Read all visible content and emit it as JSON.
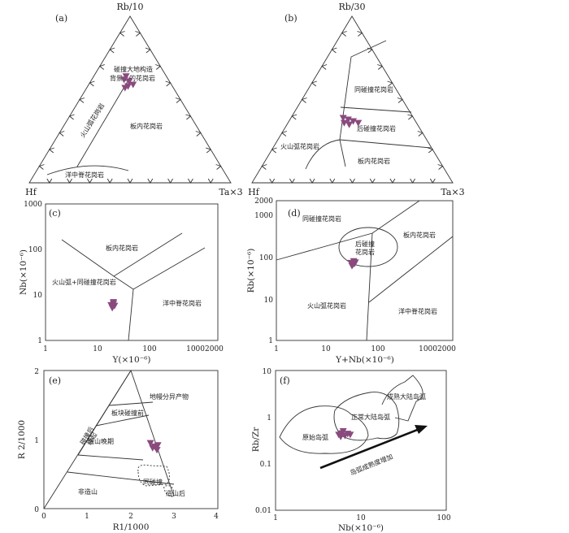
{
  "colors": {
    "marker": "#8a4a7e",
    "line": "#333333"
  },
  "panels": {
    "a": {
      "letter": "(a)",
      "apex_top": "Rb/10",
      "apex_left": "Hf",
      "apex_right": "Ta×3",
      "fields": {
        "syn_collision": "碰撞大地构造",
        "syn_collision2": "背景上的花岗岩",
        "volcanic_arc": "火山弧花岗岩",
        "within_plate": "板内花岗岩",
        "ocean_ridge": "洋中脊花岗岩"
      }
    },
    "b": {
      "letter": "(b)",
      "apex_top": "Rb/30",
      "apex_left": "Hf",
      "apex_right": "Ta×3",
      "fields": {
        "syn_collision": "同碰撞花岗岩",
        "post_collision": "后碰撞花岗岩",
        "volcanic_arc": "火山弧花岗岩",
        "within_plate": "板内花岗岩"
      }
    },
    "c": {
      "letter": "(c)",
      "ylabel": "Nb(×10⁻⁶)",
      "xlabel": "Y(×10⁻⁶)",
      "yticks": [
        "1000",
        "100",
        "10",
        "1"
      ],
      "xticks": [
        "1",
        "10",
        "100",
        "10002000"
      ],
      "fields": {
        "within_plate": "板内花岗岩",
        "arc_syn": "火山弧+同碰撞花岗岩",
        "ocean_ridge": "洋中脊花岗岩"
      }
    },
    "d": {
      "letter": "(d)",
      "ylabel": "Rb(×10⁻⁶)",
      "xlabel": "Y+Nb(×10⁻⁶)",
      "yticks": [
        "2000",
        "1000",
        "100",
        "10",
        "1"
      ],
      "xticks": [
        "1",
        "10",
        "100",
        "10002000"
      ],
      "fields": {
        "syn_collision": "同碰撞花岗岩",
        "post1": "后碰撞",
        "post2": "花岗岩",
        "within_plate": "板内花岗岩",
        "volcanic_arc": "火山弧花岗岩",
        "ocean_ridge": "洋中脊花岗岩"
      }
    },
    "e": {
      "letter": "(e)",
      "ylabel": "R 2/1000",
      "xlabel": "R1/1000",
      "yticks": [
        "2",
        "1",
        "0"
      ],
      "xticks": [
        "0",
        "1",
        "2",
        "3",
        "4"
      ],
      "fields": {
        "anorogenic": "地幔分异产物",
        "pre_plate": "板块碰撞前",
        "post_uplift1": "碰撞后",
        "post_uplift2": "隆起",
        "late_orogenic": "造山晚期",
        "non_orogenic": "非造山",
        "syn_collision": "同碰撞",
        "post_orogenic": "造山后"
      }
    },
    "f": {
      "letter": "(f)",
      "ylabel": "Rb/Zr",
      "xlabel": "Nb(×10⁻⁶)",
      "yticks": [
        "10",
        "1",
        "0.1",
        "0.01"
      ],
      "xticks": [
        "1",
        "10",
        "100"
      ],
      "fields": {
        "mature_arc": "成熟大陆岛弧",
        "normal_arc": "正常大陆岛弧",
        "primitive_arc": "原始岛弧",
        "arrow_label": "岛弧成熟度增加"
      }
    }
  },
  "chart_data": [
    {
      "panel": "a",
      "type": "scatter",
      "coordinates": "ternary (Rb/10, Hf, Ta×3)",
      "points": [
        [
          0.64,
          0.2,
          0.16
        ],
        [
          0.62,
          0.22,
          0.16
        ],
        [
          0.61,
          0.2,
          0.19
        ],
        [
          0.58,
          0.22,
          0.2
        ],
        [
          0.57,
          0.24,
          0.19
        ],
        [
          0.59,
          0.19,
          0.22
        ]
      ]
    },
    {
      "panel": "b",
      "type": "scatter",
      "coordinates": "ternary (Rb/30, Hf, Ta×3)",
      "points": [
        [
          0.39,
          0.35,
          0.26
        ],
        [
          0.38,
          0.33,
          0.29
        ],
        [
          0.36,
          0.36,
          0.28
        ],
        [
          0.35,
          0.34,
          0.31
        ],
        [
          0.36,
          0.29,
          0.35
        ],
        [
          0.37,
          0.31,
          0.32
        ]
      ]
    },
    {
      "panel": "c",
      "type": "scatter",
      "x_label": "Y(×10⁻⁶)",
      "y_label": "Nb(×10⁻⁶)",
      "log_x": true,
      "log_y": true,
      "xlim": [
        1,
        2000
      ],
      "ylim": [
        1,
        1000
      ],
      "points": [
        [
          18,
          6
        ],
        [
          20,
          6.5
        ],
        [
          19,
          5.2
        ],
        [
          21,
          5.8
        ],
        [
          20,
          7
        ]
      ]
    },
    {
      "panel": "d",
      "type": "scatter",
      "x_label": "Y+Nb(×10⁻⁶)",
      "y_label": "Rb(×10⁻⁶)",
      "log_x": true,
      "log_y": true,
      "xlim": [
        1,
        2000
      ],
      "ylim": [
        1,
        2000
      ],
      "points": [
        [
          25,
          68
        ],
        [
          27,
          62
        ],
        [
          28,
          75
        ],
        [
          30,
          70
        ],
        [
          26,
          58
        ],
        [
          29,
          65
        ]
      ]
    },
    {
      "panel": "e",
      "type": "scatter",
      "x_label": "R1/1000",
      "y_label": "R 2/1000",
      "xlim": [
        0,
        4
      ],
      "ylim": [
        0,
        2
      ],
      "points": [
        [
          2.45,
          0.95
        ],
        [
          2.55,
          0.9
        ],
        [
          2.6,
          0.85
        ],
        [
          2.5,
          0.88
        ],
        [
          2.62,
          0.92
        ]
      ]
    },
    {
      "panel": "f",
      "type": "scatter",
      "x_label": "Nb(×10⁻⁶)",
      "y_label": "Rb/Zr",
      "log_x": true,
      "log_y": true,
      "xlim": [
        1,
        100
      ],
      "ylim": [
        0.01,
        10
      ],
      "points": [
        [
          5.5,
          0.42
        ],
        [
          6,
          0.45
        ],
        [
          6.5,
          0.4
        ],
        [
          7,
          0.44
        ],
        [
          7.5,
          0.42
        ],
        [
          5.8,
          0.38
        ],
        [
          6.2,
          0.5
        ]
      ]
    }
  ]
}
